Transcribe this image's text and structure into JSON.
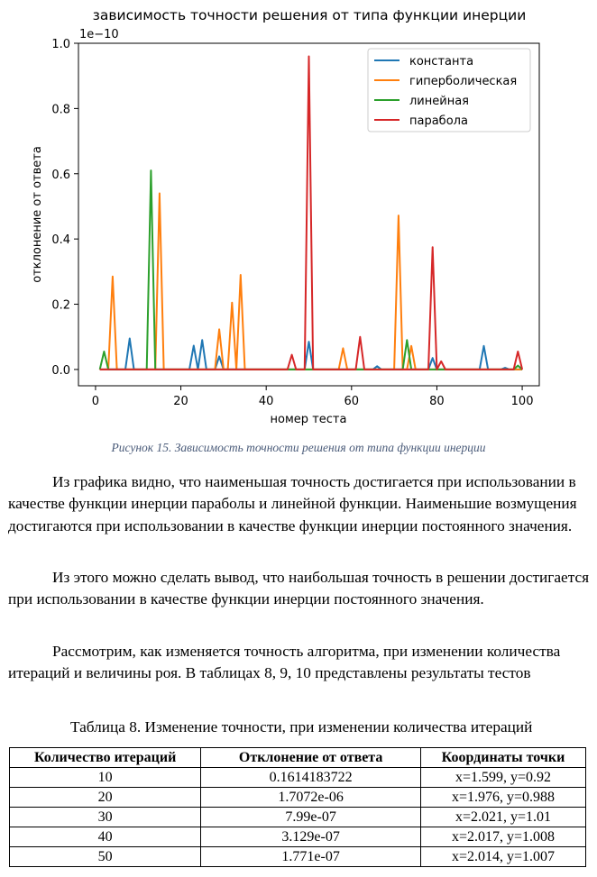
{
  "chart_data": {
    "type": "line",
    "title": "зависимость точности решения от типа функции инерции",
    "xlabel": "номер теста",
    "ylabel": "отклонение от ответа",
    "offset_label": "1e−10",
    "xlim": [
      -4,
      104
    ],
    "ylim": [
      -0.05,
      1.0
    ],
    "xticks": [
      "0",
      "20",
      "40",
      "60",
      "80",
      "100"
    ],
    "yticks": [
      "0.0",
      "0.2",
      "0.4",
      "0.6",
      "0.8",
      "1.0"
    ],
    "legend_position": "top-right",
    "grid": false,
    "series": [
      {
        "name": "константа",
        "color": "#1f77b4",
        "points": [
          [
            7,
            0
          ],
          [
            8,
            0.095
          ],
          [
            9,
            0
          ],
          [
            22,
            0
          ],
          [
            23,
            0.073
          ],
          [
            24,
            0
          ],
          [
            25,
            0.09
          ],
          [
            26,
            0
          ],
          [
            28,
            0
          ],
          [
            29,
            0.04
          ],
          [
            30,
            0
          ],
          [
            49,
            0
          ],
          [
            50,
            0.085
          ],
          [
            51,
            0
          ],
          [
            65,
            0
          ],
          [
            66,
            0.01
          ],
          [
            67,
            0
          ],
          [
            78,
            0
          ],
          [
            79,
            0.035
          ],
          [
            80,
            0
          ],
          [
            90,
            0
          ],
          [
            91,
            0.072
          ],
          [
            92,
            0
          ],
          [
            95,
            0
          ],
          [
            96,
            0.005
          ],
          [
            97,
            0
          ]
        ]
      },
      {
        "name": "гиперболическая",
        "color": "#ff7f0e",
        "points": [
          [
            3,
            0
          ],
          [
            4,
            0.285
          ],
          [
            5,
            0
          ],
          [
            14,
            0
          ],
          [
            15,
            0.54
          ],
          [
            16,
            0
          ],
          [
            28,
            0
          ],
          [
            29,
            0.123
          ],
          [
            30,
            0
          ],
          [
            31,
            0
          ],
          [
            32,
            0.205
          ],
          [
            33,
            0
          ],
          [
            34,
            0.29
          ],
          [
            35,
            0
          ],
          [
            57,
            0
          ],
          [
            58,
            0.065
          ],
          [
            59,
            0
          ],
          [
            70,
            0
          ],
          [
            71,
            0.472
          ],
          [
            72,
            0
          ],
          [
            73,
            0
          ],
          [
            74,
            0.072
          ],
          [
            75,
            0
          ]
        ]
      },
      {
        "name": "линейная",
        "color": "#2ca02c",
        "points": [
          [
            1,
            0
          ],
          [
            2,
            0.055
          ],
          [
            3,
            0
          ],
          [
            12,
            0
          ],
          [
            13,
            0.61
          ],
          [
            14,
            0
          ],
          [
            72,
            0
          ],
          [
            73,
            0.09
          ],
          [
            74,
            0
          ],
          [
            98,
            0
          ],
          [
            99,
            0.012
          ],
          [
            100,
            0
          ]
        ]
      },
      {
        "name": "парабола",
        "color": "#d62728",
        "points": [
          [
            45,
            0
          ],
          [
            46,
            0.045
          ],
          [
            47,
            0
          ],
          [
            49,
            0
          ],
          [
            50,
            0.96
          ],
          [
            51,
            0
          ],
          [
            61,
            0
          ],
          [
            62,
            0.1
          ],
          [
            63,
            0
          ],
          [
            78,
            0
          ],
          [
            79,
            0.375
          ],
          [
            80,
            0
          ],
          [
            81,
            0.025
          ],
          [
            82,
            0
          ],
          [
            98,
            0
          ],
          [
            99,
            0.055
          ],
          [
            100,
            0
          ]
        ]
      }
    ]
  },
  "figure_caption": "Рисунок 15. Зависимость точности решения от типа функции инерции",
  "paragraphs": [
    "Из графика видно, что наименьшая точность достигается при использовании в качестве функции инерции параболы и линейной функции. Наименьшие возмущения достигаются при использовании в качестве функции инерции постоянного значения.",
    "Из этого можно сделать вывод, что наибольшая точность в решении достигается при использовании в качестве функции инерции постоянного значения.",
    "Рассмотрим, как изменяется точность алгоритма, при изменении количества итераций и величины роя. В таблицах 8, 9, 10 представлены результаты тестов"
  ],
  "table_caption": "Таблица 8. Изменение точности, при изменении количества итераций",
  "table": {
    "headers": [
      "Количество итераций",
      "Отклонение от ответа",
      "Координаты точки"
    ],
    "rows": [
      [
        "10",
        "0.1614183722",
        "x=1.599, y=0.92"
      ],
      [
        "20",
        "1.7072e-06",
        "x=1.976, y=0.988"
      ],
      [
        "30",
        "7.99e-07",
        "x=2.021, y=1.01"
      ],
      [
        "40",
        "3.129e-07",
        "x=2.017, y=1.008"
      ],
      [
        "50",
        "1.771e-07",
        "x=2.014, y=1.007"
      ]
    ]
  }
}
